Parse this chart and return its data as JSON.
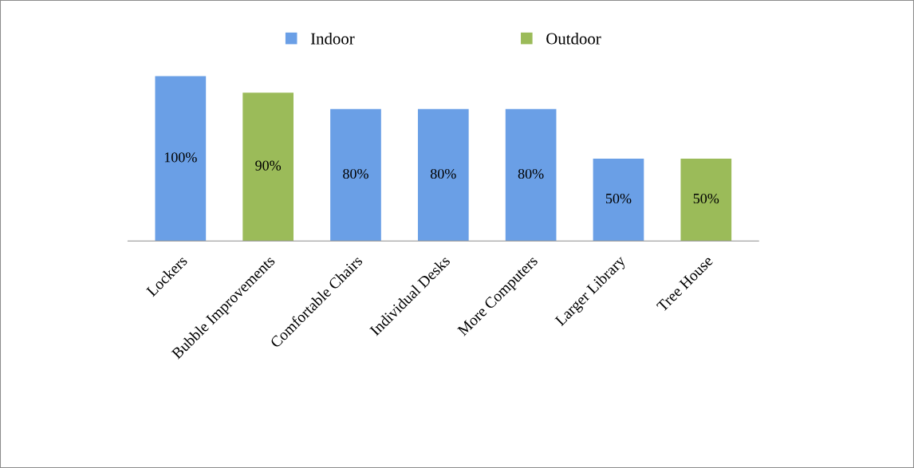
{
  "chart_data": {
    "type": "bar",
    "categories": [
      "Lockers",
      "Bubble Improvements",
      "Comfortable Chairs",
      "Individual Desks",
      "More Computers",
      "Larger Library",
      "Tree House"
    ],
    "series": [
      {
        "name": "Indoor",
        "color": "#6a9fe6",
        "values": [
          100,
          null,
          80,
          80,
          80,
          50,
          null
        ],
        "value_labels": [
          "100%",
          null,
          "80%",
          "80%",
          "80%",
          "50%",
          null
        ]
      },
      {
        "name": "Outdoor",
        "color": "#9bbb59",
        "values": [
          null,
          90,
          null,
          null,
          null,
          null,
          50
        ],
        "value_labels": [
          null,
          "90%",
          null,
          null,
          null,
          null,
          "50%"
        ]
      }
    ],
    "legend": "top",
    "grid": false
  }
}
